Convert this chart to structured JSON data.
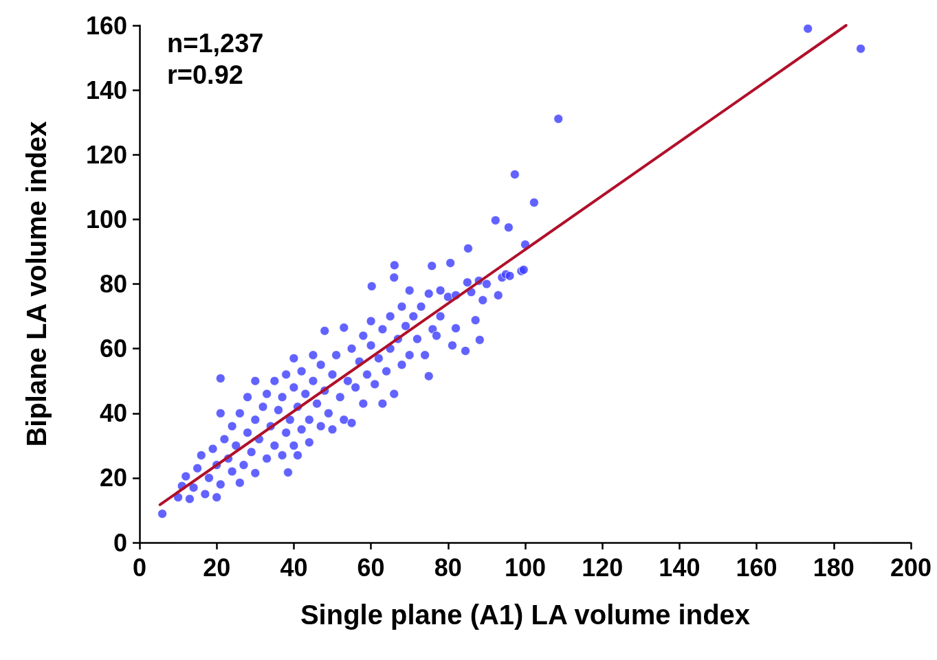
{
  "chart_data": {
    "type": "scatter",
    "xlabel": "Single plane (A1) LA volume index",
    "ylabel": "Biplane LA volume index",
    "annotations": [
      "n=1,237",
      "r=0.92"
    ],
    "xlim": [
      0,
      200
    ],
    "xticks": [
      0,
      20,
      40,
      60,
      80,
      100,
      120,
      140,
      160,
      180,
      200
    ],
    "ylim": [
      0,
      160
    ],
    "yticks": [
      0,
      20,
      40,
      60,
      80,
      100,
      120,
      140,
      160
    ],
    "grid": false,
    "series": [
      {
        "marker": "circle",
        "color": "#3b3bff",
        "x": [
          5.9,
          10,
          11,
          12,
          13,
          14,
          15,
          16,
          17,
          18,
          19,
          20,
          20,
          21,
          21,
          21,
          22,
          23,
          24,
          24,
          25,
          26,
          26,
          27,
          28,
          28,
          29,
          30,
          30,
          30,
          31,
          32,
          33,
          33,
          34,
          35,
          35,
          36,
          37,
          37,
          38,
          38,
          38.5,
          39,
          40,
          40,
          40,
          41,
          41,
          42,
          42,
          43,
          44,
          44,
          45,
          45,
          46,
          47,
          47,
          48,
          48,
          49,
          50,
          50,
          51,
          52,
          53,
          53,
          54,
          55,
          55,
          56,
          57,
          58,
          58,
          59,
          60,
          60,
          60.2,
          61,
          62,
          63,
          63,
          64,
          65,
          65,
          66,
          66,
          66.1,
          67,
          68,
          68,
          69,
          70,
          70,
          71,
          72,
          73,
          74,
          75,
          75,
          75.8,
          76,
          77,
          78,
          78,
          80,
          80.6,
          81.1,
          82,
          82,
          84.5,
          85,
          85.2,
          86,
          87.1,
          88,
          88.2,
          89,
          90,
          92.3,
          93,
          94,
          95,
          95.7,
          96,
          97.3,
          99,
          99.6,
          100,
          102.3,
          108.6,
          173.3,
          187
        ],
        "values": [
          8.9,
          14,
          17.5,
          20.5,
          13.5,
          17,
          23,
          27,
          15,
          20,
          29,
          14,
          24,
          18,
          50.8,
          40,
          32,
          26,
          22,
          36,
          30,
          18.5,
          40,
          24,
          34,
          45,
          28,
          21.5,
          38,
          50,
          32,
          42,
          26,
          46,
          36,
          30,
          50,
          41,
          27,
          45,
          34,
          52,
          21.7,
          38,
          30,
          48,
          57,
          27,
          42,
          35,
          53,
          46,
          38,
          31,
          50,
          58,
          43,
          36,
          55,
          47,
          65.5,
          40,
          52,
          35,
          58,
          45,
          66.5,
          38,
          50,
          60,
          37,
          48,
          56,
          43,
          64,
          52,
          61,
          68.5,
          79.3,
          49,
          57,
          43,
          66,
          53,
          70,
          60,
          46,
          82,
          85.8,
          63,
          55,
          73,
          67,
          58,
          78,
          70,
          63,
          73,
          58,
          51.5,
          77,
          85.6,
          66,
          64,
          78,
          70,
          76,
          86.5,
          61,
          76.5,
          66.3,
          59.3,
          80.5,
          91,
          77.5,
          68.8,
          81,
          62.7,
          75,
          80,
          99.7,
          76.5,
          82,
          83,
          97.5,
          82.5,
          113.9,
          84,
          84.4,
          92.2,
          105.2,
          131.1,
          159,
          152.8
        ]
      },
      {
        "type": "line",
        "marker": "none",
        "color": "#b0102a",
        "x": [
          5.3,
          183.2
        ],
        "values": [
          11.7,
          160
        ]
      }
    ]
  }
}
